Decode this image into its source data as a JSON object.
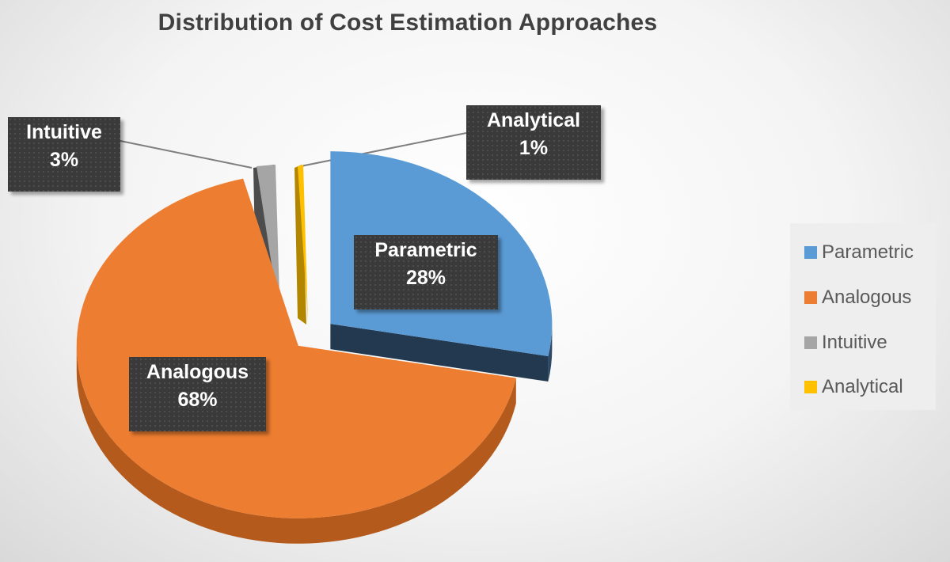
{
  "chart_data": {
    "type": "pie",
    "title": "Distribution of Cost Estimation Approaches",
    "series": [
      {
        "name": "Parametric",
        "value": 28,
        "label": "28%",
        "color": "#5b9bd5",
        "side_color": "#2c4a67"
      },
      {
        "name": "Analogous",
        "value": 68,
        "label": "68%",
        "color": "#ed7d31",
        "side_color": "#b35a1c"
      },
      {
        "name": "Intuitive",
        "value": 3,
        "label": "3%",
        "color": "#a5a5a5",
        "side_color": "#4c4c4c"
      },
      {
        "name": "Analytical",
        "value": 1,
        "label": "1%",
        "color": "#ffc000",
        "side_color": "#b38600"
      }
    ],
    "legend": {
      "position": "right"
    },
    "exploded": true,
    "three_d": true
  }
}
